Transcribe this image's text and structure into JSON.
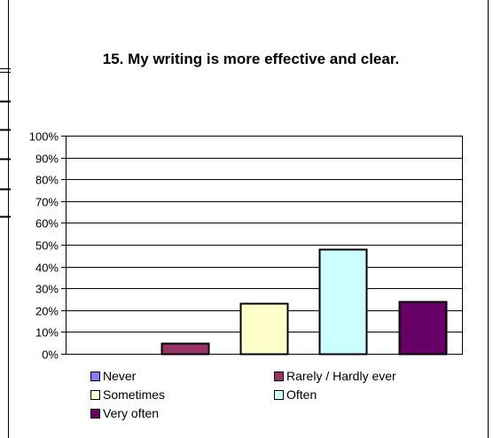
{
  "chart_data": {
    "type": "bar",
    "title": "15. My writing is more effective and clear.",
    "categories": [
      "Never",
      "Rarely / Hardly ever",
      "Sometimes",
      "Often",
      "Very often"
    ],
    "values": [
      0,
      5,
      23,
      48,
      24
    ],
    "colors": [
      "#8080ff",
      "#993366",
      "#ffffcc",
      "#ccffff",
      "#660066"
    ],
    "ylim": [
      0,
      100
    ],
    "yticks": [
      "0%",
      "10%",
      "20%",
      "30%",
      "40%",
      "50%",
      "60%",
      "70%",
      "80%",
      "90%",
      "100%"
    ],
    "grid": true,
    "legend_position": "bottom",
    "xlabel": "",
    "ylabel": ""
  }
}
